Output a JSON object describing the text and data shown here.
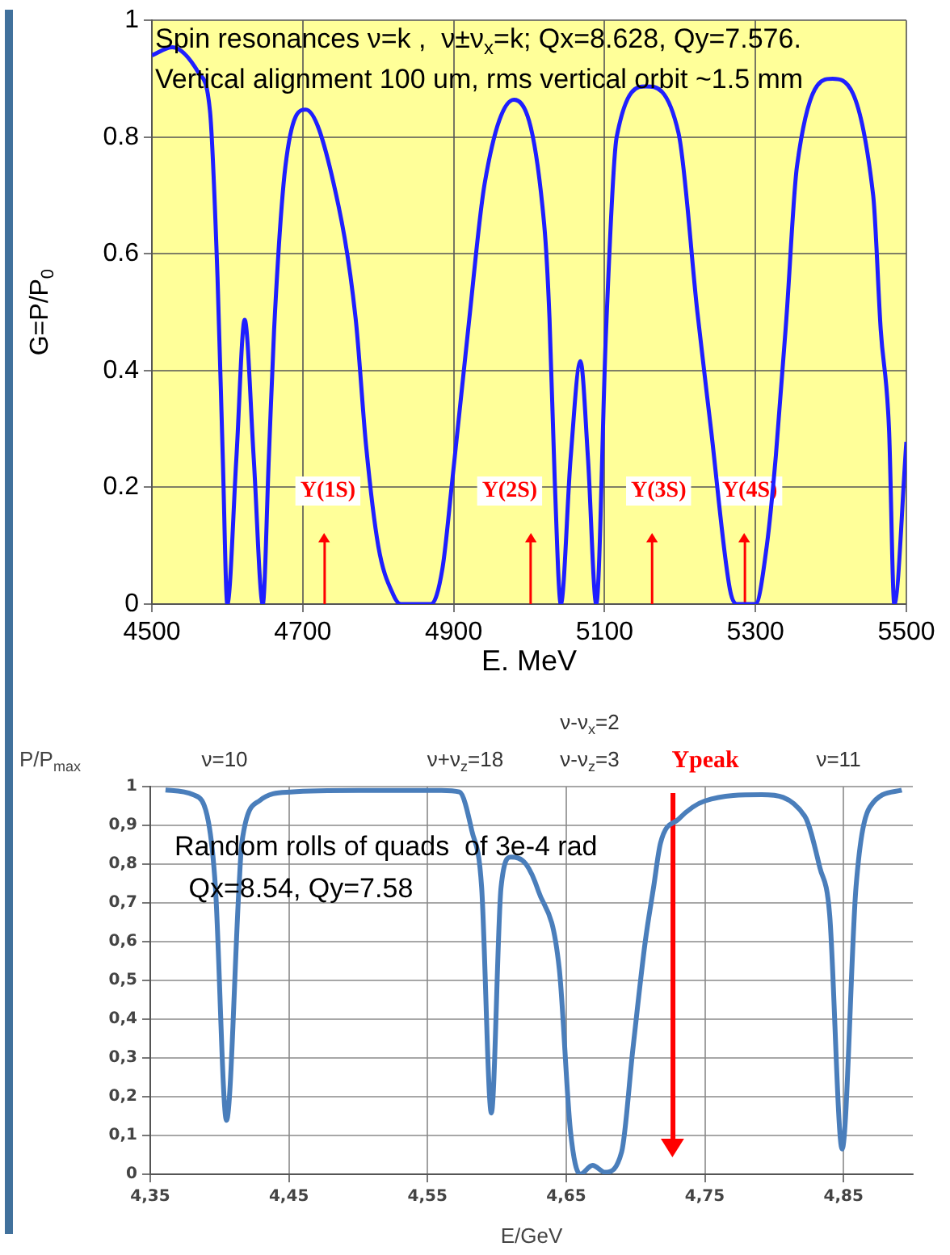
{
  "chart_data": [
    {
      "type": "line",
      "xlabel": "E. MeV",
      "ylabel": "G=P/P$_{0}$",
      "x": [
        4500,
        4527,
        4562,
        4577,
        4587,
        4594,
        4600,
        4612,
        4623,
        4635,
        4647,
        4655,
        4662,
        4677,
        4704,
        4741,
        4770,
        4784,
        4800,
        4820,
        4830,
        4870,
        4885,
        4898,
        4920,
        4941,
        4980,
        5020,
        5027,
        5034,
        5042,
        5055,
        5068,
        5078,
        5089,
        5102,
        5116,
        5155,
        5198,
        5223,
        5241,
        5266,
        5275,
        5300,
        5315,
        5327,
        5341,
        5355,
        5402,
        5456,
        5466,
        5477,
        5484,
        5500
      ],
      "series": [
        {
          "color": "#1f1fff",
          "values": [
            0.94,
            0.954,
            0.91,
            0.845,
            0.56,
            0.25,
            0,
            0.25,
            0.487,
            0.25,
            0,
            0.25,
            0.47,
            0.75,
            0.847,
            0.72,
            0.49,
            0.27,
            0.1,
            0.016,
            0,
            0,
            0.06,
            0.21,
            0.48,
            0.72,
            0.864,
            0.65,
            0.49,
            0.21,
            0,
            0.25,
            0.416,
            0.25,
            0,
            0.47,
            0.8,
            0.887,
            0.807,
            0.5,
            0.3,
            0.026,
            0,
            0,
            0.1,
            0.254,
            0.49,
            0.75,
            0.9,
            0.7,
            0.47,
            0.3,
            0,
            0.278
          ]
        }
      ],
      "xlim": [
        4500,
        5500
      ],
      "xticks": [
        4500,
        4700,
        4900,
        5100,
        5300,
        5500
      ],
      "ylim": [
        0,
        1
      ],
      "yticks": [
        0,
        0.2,
        0.4,
        0.6,
        0.8,
        1
      ],
      "grid": true,
      "ref_lines": [
        {
          "axis": "x",
          "value": 4729,
          "label": "Υ(1S)",
          "color": "#ff0000"
        },
        {
          "axis": "x",
          "value": 5002,
          "label": "Υ(2S)",
          "color": "#ff0000"
        },
        {
          "axis": "x",
          "value": 5163,
          "label": "Υ(3S)",
          "color": "#ff0000"
        },
        {
          "axis": "x",
          "value": 5286,
          "label": "Υ(4S)",
          "color": "#ff0000"
        }
      ],
      "annotations": [
        "Spin resonances ν=k ,  ν±ν$_{x}$=k; Qx=8.628, Qy=7.576.",
        "Vertical alignment 100 um, rms vertical orbit ~1.5 mm"
      ]
    },
    {
      "type": "line",
      "xlabel": "E/GeV",
      "ylabel": "P/P$_{max}$",
      "x": [
        4.361,
        4.381,
        4.392,
        4.397,
        4.405,
        4.414,
        4.416,
        4.429,
        4.451,
        4.5,
        4.56,
        4.573,
        4.582,
        4.589,
        4.596,
        4.603,
        4.61,
        4.621,
        4.63,
        4.645,
        4.653,
        4.66,
        4.669,
        4.678,
        4.69,
        4.698,
        4.707,
        4.713,
        4.718,
        4.731,
        4.75,
        4.791,
        4.822,
        4.833,
        4.84,
        4.849,
        4.859,
        4.869,
        4.892
      ],
      "series": [
        {
          "color": "#4a7ebb",
          "values": [
            0.991,
            0.979,
            0.908,
            0.74,
            0.139,
            0.74,
            0.854,
            0.964,
            0.986,
            0.99,
            0.99,
            0.986,
            0.885,
            0.74,
            0.158,
            0.74,
            0.818,
            0.8,
            0.73,
            0.53,
            0.114,
            0,
            0.023,
            0.005,
            0.058,
            0.32,
            0.6,
            0.74,
            0.854,
            0.916,
            0.963,
            0.979,
            0.924,
            0.79,
            0.67,
            0.065,
            0.74,
            0.947,
            0.991
          ]
        }
      ],
      "xlim": [
        4.35,
        4.9
      ],
      "xticks": [
        {
          "value": 4.35,
          "label": "4,35"
        },
        {
          "value": 4.45,
          "label": "4,45"
        },
        {
          "value": 4.55,
          "label": "4,55"
        },
        {
          "value": 4.65,
          "label": "4,65"
        },
        {
          "value": 4.75,
          "label": "4,75"
        },
        {
          "value": 4.85,
          "label": "4,85"
        }
      ],
      "ylim": [
        0,
        1
      ],
      "yticks": [
        0,
        {
          "value": 0.1,
          "label": "0,1"
        },
        {
          "value": 0.2,
          "label": "0,2"
        },
        {
          "value": 0.3,
          "label": "0,3"
        },
        {
          "value": 0.4,
          "label": "0,4"
        },
        {
          "value": 0.5,
          "label": "0,5"
        },
        {
          "value": 0.6,
          "label": "0,6"
        },
        {
          "value": 0.7,
          "label": "0,7"
        },
        {
          "value": 0.8,
          "label": "0,8"
        },
        {
          "value": 0.9,
          "label": "0,9"
        },
        1
      ],
      "grid": true,
      "ref_lines": [
        {
          "axis": "x",
          "value": 4.727,
          "label": "Υpeak",
          "color": "#ff0000"
        }
      ],
      "annotations": [
        "Random rolls of quads  of 3e-4 rad",
        " Qx=8.54, Qy=7.58",
        "ν=10",
        "ν+ν$_{z}$=18",
        "ν-ν$_{z}$=3",
        "ν-ν$_{x}$=2",
        "ν=11"
      ]
    }
  ]
}
